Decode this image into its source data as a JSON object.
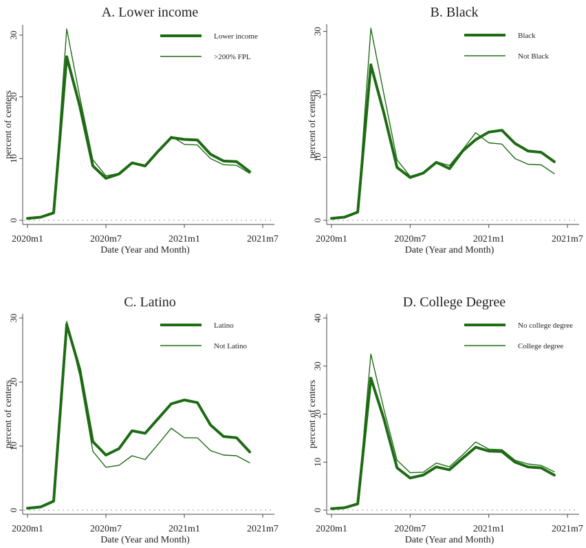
{
  "chart_data": [
    {
      "type": "line",
      "title": "A. Lower income",
      "xlabel": "Date (Year and Month)",
      "ylabel": "percent of centers",
      "x_ticks": [
        "2020m1",
        "2020m7",
        "2021m1",
        "2021m7"
      ],
      "x_range": [
        "2020m1",
        "2021m7"
      ],
      "ylim": [
        0,
        31
      ],
      "y_ticks": [
        0,
        10,
        20,
        30
      ],
      "x": [
        "2020m1",
        "2020m2",
        "2020m3",
        "2020m4",
        "2020m5",
        "2020m6",
        "2020m7",
        "2020m8",
        "2020m9",
        "2020m10",
        "2020m11",
        "2020m12",
        "2021m1",
        "2021m2",
        "2021m3",
        "2021m4",
        "2021m5",
        "2021m6"
      ],
      "legend_position": "top-right",
      "series": [
        {
          "name": "Lower income",
          "values": [
            0.3,
            0.5,
            1.2,
            26.5,
            18.5,
            8.8,
            6.8,
            7.5,
            9.3,
            8.8,
            11.2,
            13.4,
            13.1,
            13.0,
            10.7,
            9.6,
            9.5,
            7.9
          ]
        },
        {
          "name": ">200% FPL",
          "values": [
            0.3,
            0.5,
            1.2,
            31.0,
            20.0,
            9.8,
            7.2,
            7.6,
            9.4,
            8.8,
            11.1,
            13.6,
            12.3,
            12.2,
            10.0,
            9.0,
            8.9,
            7.6
          ]
        }
      ]
    },
    {
      "type": "line",
      "title": "B. Black",
      "xlabel": "Date (Year and Month)",
      "ylabel": "percent of centers",
      "x_ticks": [
        "2020m1",
        "2020m7",
        "2021m1",
        "2021m7"
      ],
      "x_range": [
        "2020m1",
        "2021m7"
      ],
      "ylim": [
        0,
        30.5
      ],
      "y_ticks": [
        0,
        10,
        20,
        30
      ],
      "x": [
        "2020m1",
        "2020m2",
        "2020m3",
        "2020m4",
        "2020m5",
        "2020m6",
        "2020m7",
        "2020m8",
        "2020m9",
        "2020m10",
        "2020m11",
        "2020m12",
        "2021m1",
        "2021m2",
        "2021m3",
        "2021m4",
        "2021m5",
        "2021m6"
      ],
      "legend_position": "top-right",
      "series": [
        {
          "name": "Black",
          "values": [
            0.3,
            0.5,
            1.3,
            24.7,
            17.0,
            8.4,
            6.8,
            7.5,
            9.2,
            8.2,
            11.0,
            12.8,
            14.0,
            14.3,
            12.2,
            11.0,
            10.8,
            9.3
          ]
        },
        {
          "name": "Not Black",
          "values": [
            0.3,
            0.5,
            1.3,
            30.5,
            20.0,
            9.6,
            7.0,
            7.6,
            9.3,
            8.7,
            11.2,
            13.9,
            12.3,
            12.1,
            9.8,
            8.9,
            8.8,
            7.4
          ]
        }
      ]
    },
    {
      "type": "line",
      "title": "C. Latino",
      "xlabel": "Date (Year and Month)",
      "ylabel": "percent of centers",
      "x_ticks": [
        "2020m1",
        "2020m7",
        "2021m1",
        "2021m7"
      ],
      "x_range": [
        "2020m1",
        "2021m7"
      ],
      "ylim": [
        0,
        30
      ],
      "y_ticks": [
        0,
        10,
        20,
        30
      ],
      "x": [
        "2020m1",
        "2020m2",
        "2020m3",
        "2020m4",
        "2020m5",
        "2020m6",
        "2020m7",
        "2020m8",
        "2020m9",
        "2020m10",
        "2020m11",
        "2020m12",
        "2021m1",
        "2021m2",
        "2021m3",
        "2021m4",
        "2021m5",
        "2021m6"
      ],
      "legend_position": "top-right",
      "series": [
        {
          "name": "Latino",
          "values": [
            0.3,
            0.5,
            1.4,
            29.0,
            22.0,
            10.7,
            8.6,
            9.6,
            12.4,
            12.0,
            14.3,
            16.6,
            17.2,
            16.8,
            13.3,
            11.5,
            11.3,
            9.1
          ]
        },
        {
          "name": "Not Latino",
          "values": [
            0.3,
            0.5,
            1.4,
            29.5,
            21.0,
            9.2,
            6.7,
            7.0,
            8.5,
            7.9,
            10.3,
            12.8,
            11.3,
            11.3,
            9.3,
            8.6,
            8.5,
            7.4
          ]
        }
      ]
    },
    {
      "type": "line",
      "title": "D. College Degree",
      "xlabel": "Date (Year and Month)",
      "ylabel": "percent of centers",
      "x_ticks": [
        "2020m1",
        "2020m7",
        "2021m1",
        "2021m7"
      ],
      "x_range": [
        "2020m1",
        "2021m7"
      ],
      "ylim": [
        0,
        40
      ],
      "y_ticks": [
        0,
        10,
        20,
        30,
        40
      ],
      "x": [
        "2020m1",
        "2020m2",
        "2020m3",
        "2020m4",
        "2020m5",
        "2020m6",
        "2020m7",
        "2020m8",
        "2020m9",
        "2020m10",
        "2020m11",
        "2020m12",
        "2021m1",
        "2021m2",
        "2021m3",
        "2021m4",
        "2021m5",
        "2021m6"
      ],
      "legend_position": "top-right",
      "series": [
        {
          "name": "No college degree",
          "values": [
            0.3,
            0.5,
            1.3,
            27.5,
            19.0,
            8.8,
            6.7,
            7.3,
            9.0,
            8.4,
            10.8,
            13.1,
            12.3,
            12.2,
            10.0,
            9.0,
            8.8,
            7.3
          ]
        },
        {
          "name": "College degree",
          "values": [
            0.3,
            0.5,
            1.3,
            32.5,
            21.0,
            10.4,
            7.8,
            7.9,
            9.8,
            9.0,
            11.5,
            14.2,
            12.7,
            12.6,
            10.4,
            9.6,
            9.3,
            8.0
          ]
        }
      ]
    }
  ],
  "colors": {
    "series_line": "#1e6b14",
    "axis": "#444444",
    "zero_line": "#9a9a9a"
  }
}
